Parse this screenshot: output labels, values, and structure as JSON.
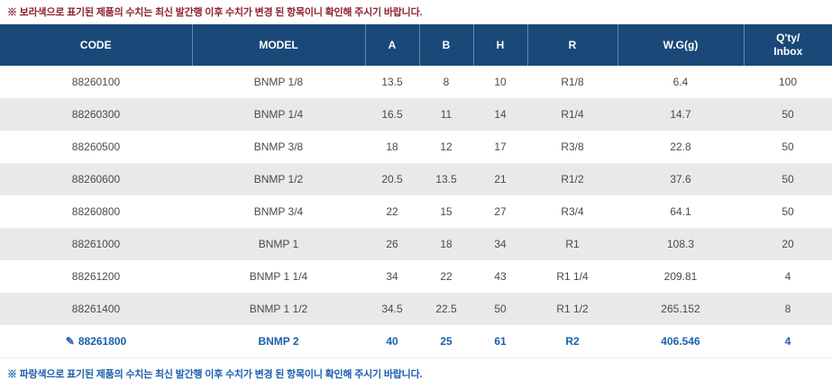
{
  "notes": {
    "top": "※ 보라색으로 표기된 제품의 수치는 최신 발간행 이후 수치가 변경 된 항목이니 확인해 주시기 바랍니다.",
    "bottom": "※ 파랑색으로 표기된 제품의 수치는 최신 발간행 이후 수치가 변경 된 항목이니 확인해 주시기 바랍니다."
  },
  "icons": {
    "edit": "✎"
  },
  "colors": {
    "header_bg": "#1a4878",
    "header_text": "#ffffff",
    "row_alt_bg": "#e9e9ec",
    "row_text": "#4a4a4c",
    "highlight_text": "#1c5fad",
    "top_note_text": "#8d2332",
    "bottom_note_text": "#1c5fad"
  },
  "table": {
    "columns": [
      {
        "key": "code",
        "label": "CODE"
      },
      {
        "key": "model",
        "label": "MODEL"
      },
      {
        "key": "a",
        "label": "A"
      },
      {
        "key": "b",
        "label": "B"
      },
      {
        "key": "h",
        "label": "H"
      },
      {
        "key": "r",
        "label": "R"
      },
      {
        "key": "wg",
        "label": "W.G(g)"
      },
      {
        "key": "qty",
        "label": "Q'ty/\nInbox"
      }
    ],
    "rows": [
      {
        "cells": [
          "88260100",
          "BNMP 1/8",
          "13.5",
          "8",
          "10",
          "R1/8",
          "6.4",
          "100"
        ],
        "highlighted": false
      },
      {
        "cells": [
          "88260300",
          "BNMP 1/4",
          "16.5",
          "11",
          "14",
          "R1/4",
          "14.7",
          "50"
        ],
        "highlighted": false
      },
      {
        "cells": [
          "88260500",
          "BNMP 3/8",
          "18",
          "12",
          "17",
          "R3/8",
          "22.8",
          "50"
        ],
        "highlighted": false
      },
      {
        "cells": [
          "88260600",
          "BNMP 1/2",
          "20.5",
          "13.5",
          "21",
          "R1/2",
          "37.6",
          "50"
        ],
        "highlighted": false
      },
      {
        "cells": [
          "88260800",
          "BNMP 3/4",
          "22",
          "15",
          "27",
          "R3/4",
          "64.1",
          "50"
        ],
        "highlighted": false
      },
      {
        "cells": [
          "88261000",
          "BNMP 1",
          "26",
          "18",
          "34",
          "R1",
          "108.3",
          "20"
        ],
        "highlighted": false
      },
      {
        "cells": [
          "88261200",
          "BNMP 1 1/4",
          "34",
          "22",
          "43",
          "R1 1/4",
          "209.81",
          "4"
        ],
        "highlighted": false
      },
      {
        "cells": [
          "88261400",
          "BNMP 1 1/2",
          "34.5",
          "22.5",
          "50",
          "R1 1/2",
          "265.152",
          "8"
        ],
        "highlighted": false
      },
      {
        "cells": [
          "88261800",
          "BNMP 2",
          "40",
          "25",
          "61",
          "R2",
          "406.546",
          "4"
        ],
        "highlighted": true
      }
    ]
  }
}
